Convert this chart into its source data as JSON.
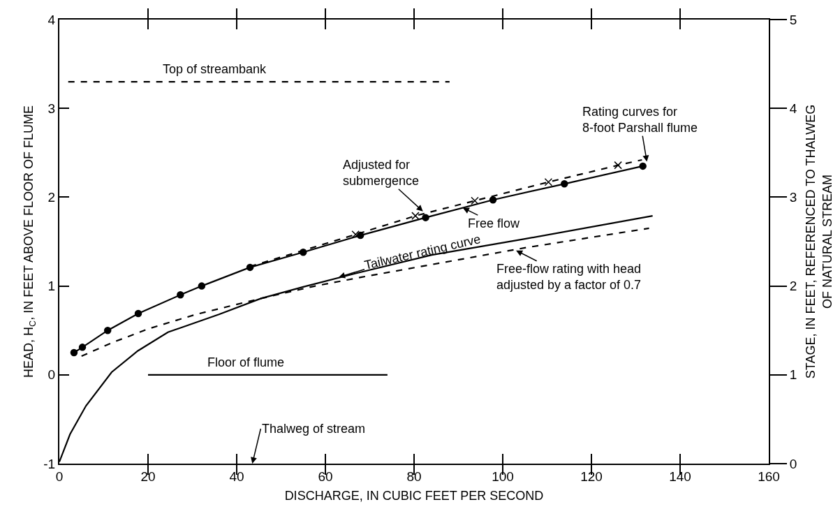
{
  "chart_data": {
    "type": "line",
    "xlabel": "DISCHARGE, IN CUBIC FEET PER SECOND",
    "ylabel": "HEAD, H$_{C}$, IN FEET ABOVE FLOOR OF FLUME",
    "y2label": "STAGE, IN FEET, REFERENCED TO THALWEG\nOF NATURAL STREAM",
    "xlim": [
      0,
      160
    ],
    "xticks": [
      0,
      20,
      40,
      60,
      80,
      100,
      120,
      140,
      160
    ],
    "ylim": [
      -1,
      4
    ],
    "yticks": [
      -1,
      0,
      1,
      2,
      3,
      4
    ],
    "y2lim": [
      0,
      5
    ],
    "y2ticks": [
      0,
      1,
      2,
      3,
      4,
      5
    ],
    "grid": false,
    "series": [
      {
        "color": "#000000",
        "line_style": "solid",
        "marker": "circle",
        "x": [
          3.3,
          5.2,
          10.9,
          17.8,
          27.3,
          32.1,
          43,
          55,
          67.9,
          82.6,
          97.8,
          113.9,
          131.6
        ],
        "values": [
          0.25,
          0.31,
          0.5,
          0.69,
          0.9,
          1.0,
          1.21,
          1.38,
          1.57,
          1.77,
          1.97,
          2.15,
          2.35
        ]
      },
      {
        "type": "line",
        "color": "#000000",
        "line_style": "dashed",
        "marker": "none",
        "x": [
          43,
          55,
          66.8,
          80.3,
          93.7,
          110.3,
          126,
          131.4
        ],
        "values": [
          1.22,
          1.4,
          1.58,
          1.79,
          1.96,
          2.17,
          2.36,
          2.42
        ]
      },
      {
        "type": "scatter",
        "color": "#000000",
        "marker": "cross",
        "x": [
          66.8,
          80.3,
          93.7,
          110.3,
          126
        ],
        "values": [
          1.58,
          1.79,
          1.96,
          2.17,
          2.36
        ]
      },
      {
        "type": "line",
        "color": "#000000",
        "line_style": "solid",
        "marker": "none",
        "x": [
          0,
          2.4,
          6,
          11.8,
          17.7,
          24.5,
          36,
          45.5,
          55,
          66.7,
          84,
          105,
          133.8
        ],
        "values": [
          -0.98,
          -0.67,
          -0.35,
          0.03,
          0.27,
          0.48,
          0.68,
          0.86,
          0.99,
          1.14,
          1.35,
          1.53,
          1.79
        ]
      },
      {
        "type": "line",
        "color": "#000000",
        "line_style": "dashed",
        "marker": "none",
        "x": [
          5,
          11.8,
          20.2,
          30.8,
          45.5,
          57.7,
          68.2,
          105,
          133
        ],
        "values": [
          0.21,
          0.36,
          0.52,
          0.68,
          0.86,
          1.0,
          1.1,
          1.43,
          1.65
        ]
      },
      {
        "type": "line",
        "color": "#000000",
        "line_style": "dashed",
        "marker": "none",
        "x": [
          2,
          88
        ],
        "values": [
          3.3,
          3.3
        ]
      },
      {
        "type": "line",
        "color": "#000000",
        "line_style": "solid",
        "marker": "none",
        "x": [
          20,
          74
        ],
        "values": [
          0,
          0
        ]
      }
    ],
    "annotations": [
      {
        "text": "Top of streambank",
        "x": 35,
        "y": 3.3
      },
      {
        "text": "Floor of flume",
        "x": 42,
        "y": 0
      },
      "Thalweg of stream",
      {
        "text": "Adjusted for\nsubmergence",
        "x": 82,
        "y": 1.84
      },
      {
        "text": "Free flow",
        "x": 91,
        "y": 1.88
      },
      {
        "text": "Rating curves for\n8-foot Parshall flume",
        "x": 132.5,
        "y": 2.4
      },
      {
        "text": "Tailwater rating curve",
        "x": 63,
        "y": 1.1
      },
      {
        "text": "Free-flow rating with head\nadjusted by a factor of 0.7",
        "x": 103,
        "y": 1.4
      }
    ]
  }
}
